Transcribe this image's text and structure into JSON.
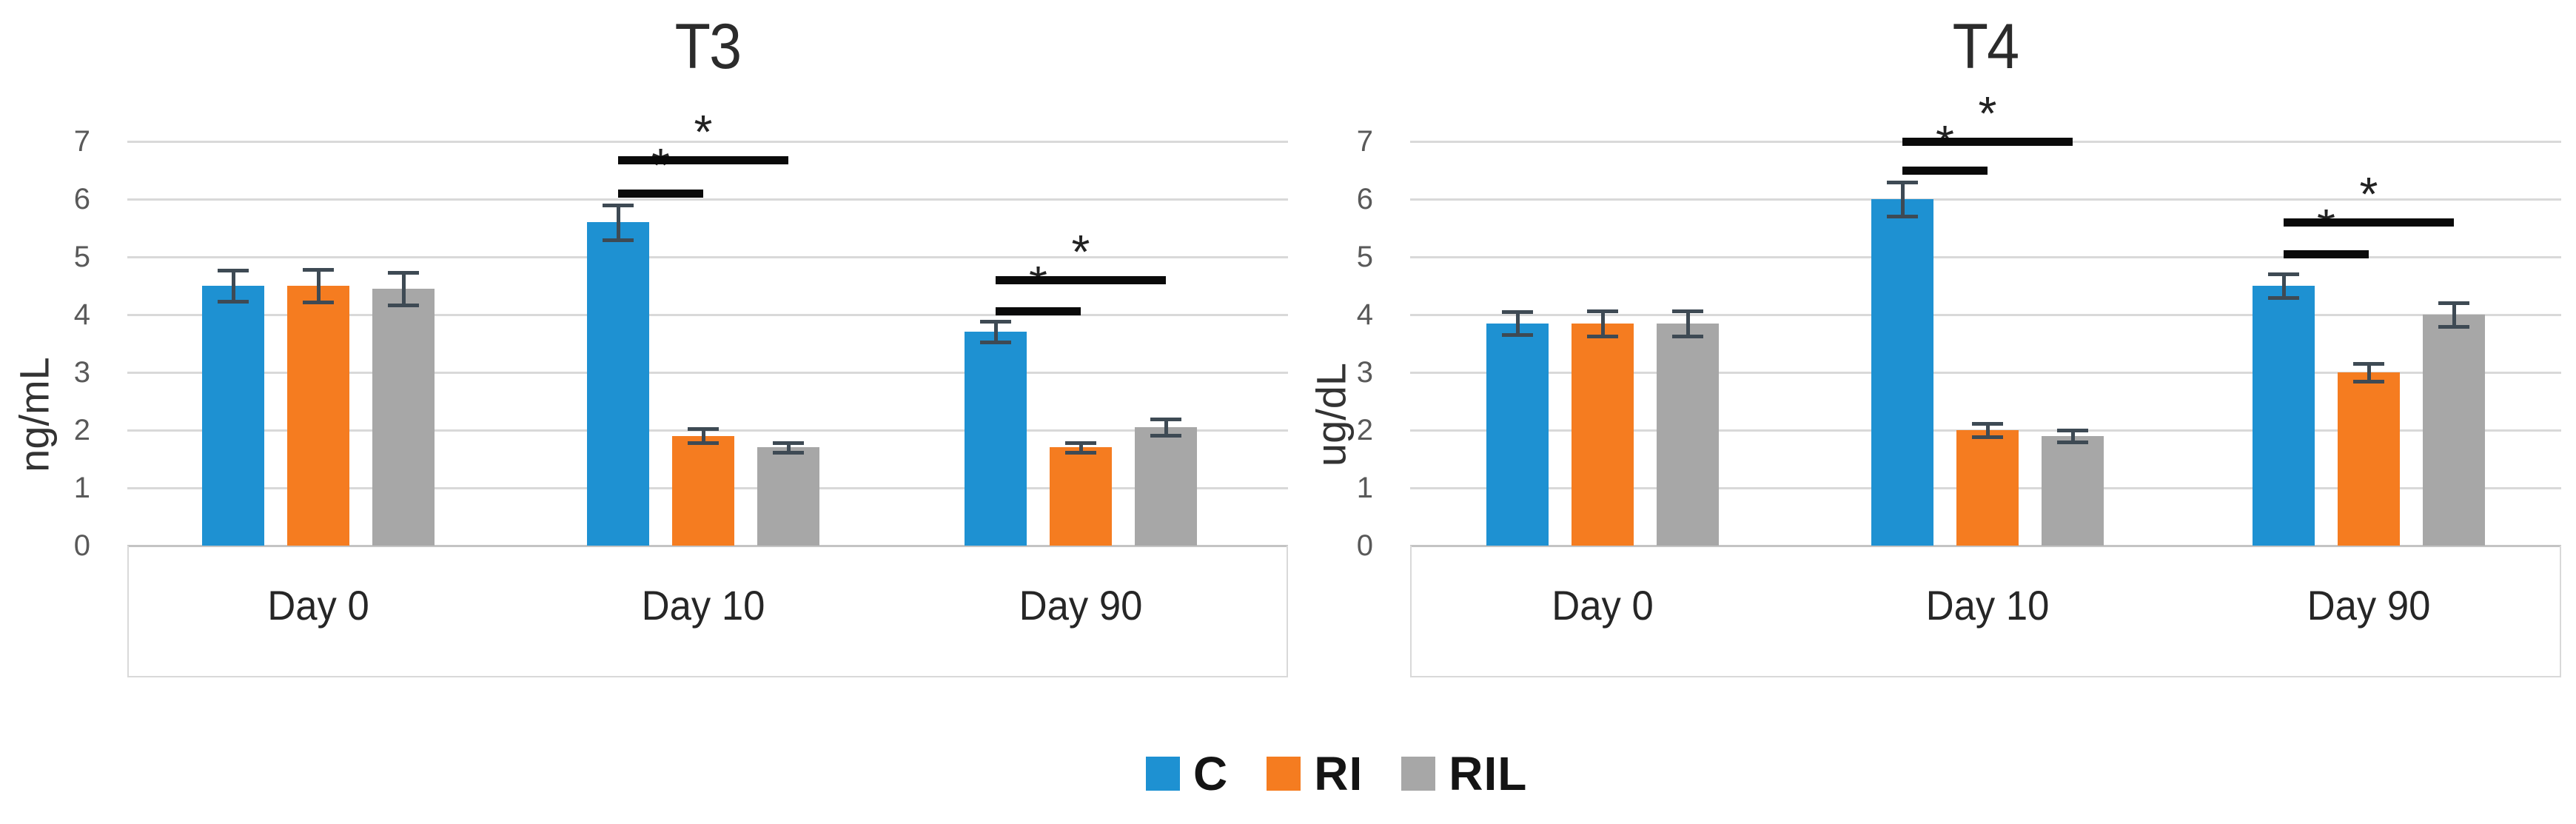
{
  "page": {
    "background": "#ffffff"
  },
  "chart_data": {
    "type": "bar",
    "grouped": true,
    "panels": 2,
    "ylim": [
      0,
      7
    ],
    "y_ticks": [
      0,
      1,
      2,
      3,
      4,
      5,
      6,
      7
    ],
    "categories": [
      "Day 0",
      "Day 10",
      "Day 90"
    ],
    "grid": "horizontal",
    "legend": {
      "position": "bottom-center",
      "items": [
        {
          "label": "C",
          "color": "#1E91D2"
        },
        {
          "label": "RI",
          "color": "#F57C20"
        },
        {
          "label": "RIL",
          "color": "#A7A7A7"
        }
      ]
    },
    "charts": [
      {
        "title": "T3",
        "ylabel": "ng/mL",
        "series": [
          {
            "name": "C",
            "color": "#1E91D2",
            "values": [
              4.5,
              5.6,
              3.7
            ],
            "errors": [
              0.27,
              0.3,
              0.18
            ]
          },
          {
            "name": "RI",
            "color": "#F57C20",
            "values": [
              4.5,
              1.9,
              1.7
            ],
            "errors": [
              0.28,
              0.12,
              0.08
            ]
          },
          {
            "name": "RIL",
            "color": "#A7A7A7",
            "values": [
              4.45,
              1.7,
              2.05
            ],
            "errors": [
              0.28,
              0.08,
              0.14
            ]
          }
        ],
        "significance": [
          {
            "category": "Day 10",
            "from": "C",
            "to": "RI",
            "at_value": 6.1,
            "label": "*"
          },
          {
            "category": "Day 10",
            "from": "C",
            "to": "RIL",
            "at_value": 6.68,
            "label": "*"
          },
          {
            "category": "Day 90",
            "from": "C",
            "to": "RI",
            "at_value": 4.07,
            "label": "*"
          },
          {
            "category": "Day 90",
            "from": "C",
            "to": "RIL",
            "at_value": 4.6,
            "label": "*"
          }
        ]
      },
      {
        "title": "T4",
        "ylabel": "ug/dL",
        "series": [
          {
            "name": "C",
            "color": "#1E91D2",
            "values": [
              3.85,
              6.0,
              4.5
            ],
            "errors": [
              0.2,
              0.3,
              0.2
            ]
          },
          {
            "name": "RI",
            "color": "#F57C20",
            "values": [
              3.85,
              2.0,
              3.0
            ],
            "errors": [
              0.22,
              0.12,
              0.15
            ]
          },
          {
            "name": "RIL",
            "color": "#A7A7A7",
            "values": [
              3.85,
              1.9,
              4.0
            ],
            "errors": [
              0.22,
              0.1,
              0.2
            ]
          }
        ],
        "significance": [
          {
            "category": "Day 10",
            "from": "C",
            "to": "RI",
            "at_value": 6.5,
            "label": "*"
          },
          {
            "category": "Day 10",
            "from": "C",
            "to": "RIL",
            "at_value": 7.0,
            "label": "*"
          },
          {
            "category": "Day 90",
            "from": "C",
            "to": "RI",
            "at_value": 5.05,
            "label": "*"
          },
          {
            "category": "Day 90",
            "from": "C",
            "to": "RIL",
            "at_value": 5.6,
            "label": "*"
          }
        ]
      }
    ]
  }
}
